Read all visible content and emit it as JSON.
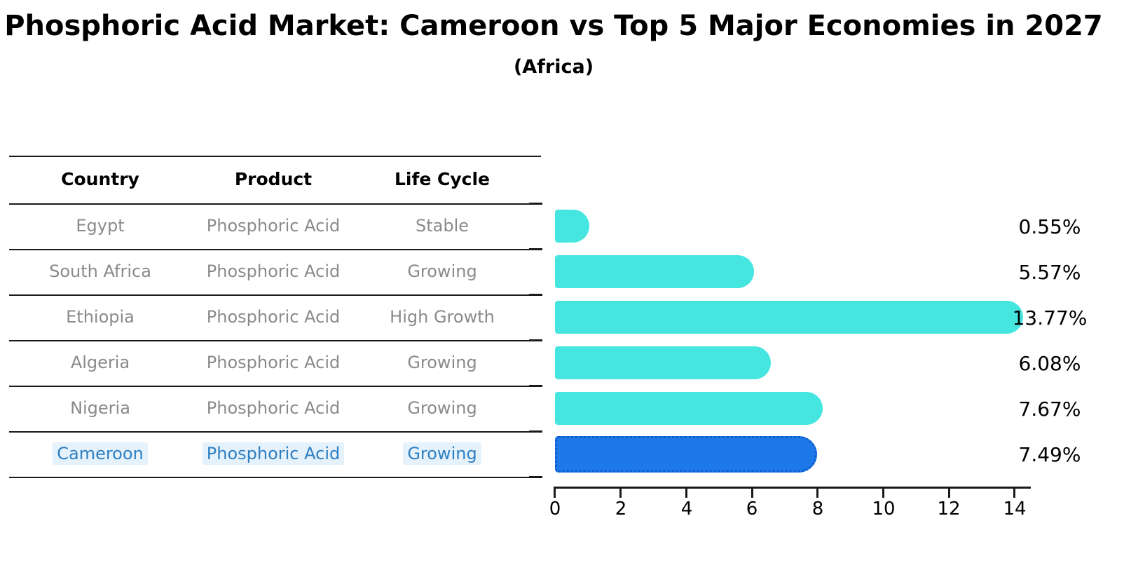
{
  "header": {
    "title": "Phosphoric Acid Market: Cameroon vs Top 5 Major Economies in 2027",
    "subtitle": "(Africa)"
  },
  "table": {
    "columns": [
      "Country",
      "Product",
      "Life Cycle"
    ],
    "rows": [
      {
        "country": "Egypt",
        "product": "Phosphoric Acid",
        "life_cycle": "Stable"
      },
      {
        "country": "South Africa",
        "product": "Phosphoric Acid",
        "life_cycle": "Growing"
      },
      {
        "country": "Ethiopia",
        "product": "Phosphoric Acid",
        "life_cycle": "High Growth"
      },
      {
        "country": "Algeria",
        "product": "Phosphoric Acid",
        "life_cycle": "Growing"
      },
      {
        "country": "Nigeria",
        "product": "Phosphoric Acid",
        "life_cycle": "Growing"
      },
      {
        "country": "Cameroon",
        "product": "Phosphoric Acid",
        "life_cycle": "Growing"
      }
    ],
    "highlight_row": "Cameroon"
  },
  "chart_data": {
    "type": "bar",
    "orientation": "horizontal",
    "title": "Phosphoric Acid Market: Cameroon vs Top 5 Major Economies in 2027",
    "subtitle": "(Africa)",
    "categories": [
      "Egypt",
      "South Africa",
      "Ethiopia",
      "Algeria",
      "Nigeria",
      "Cameroon"
    ],
    "values": [
      0.55,
      5.57,
      13.77,
      6.08,
      7.67,
      7.49
    ],
    "value_labels": [
      "0.55%",
      "5.57%",
      "13.77%",
      "6.08%",
      "7.67%",
      "7.49%"
    ],
    "unit": "percent",
    "xlim": [
      0,
      14
    ],
    "x_ticks": [
      "0",
      "2",
      "4",
      "6",
      "8",
      "10",
      "12",
      "14"
    ],
    "grid": false,
    "legend": false,
    "bar_color": "#45e6e0",
    "highlight_bar_color": "#1d78e8",
    "highlight_border_color": "#0d5bd0",
    "highlight_text_color": "#2e7fc1",
    "highlight_index": 5
  }
}
